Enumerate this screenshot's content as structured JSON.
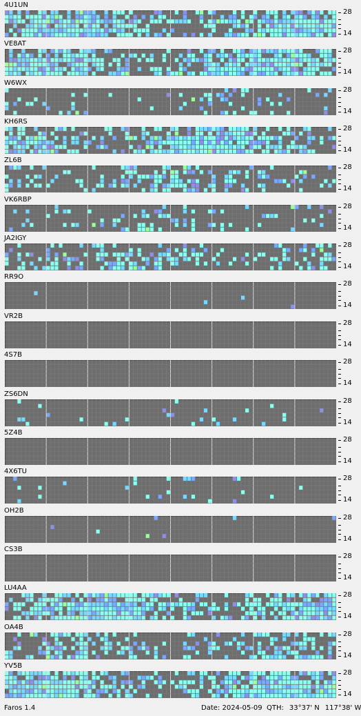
{
  "app": {
    "name": "Faros 1.4"
  },
  "status": {
    "date_label": "Date:",
    "date": "2024-05-09",
    "qth_label": "QTH:",
    "lat": "33°37' N",
    "lon": "117°38' W"
  },
  "axis": {
    "top_label": "28",
    "bottom_label": "14"
  },
  "colors": {
    "background": "#6e6e6e",
    "gridline": "#c8c8c8",
    "signal_strong": "#8cfff0",
    "signal_medium": "#78d8ff",
    "signal_weak": "#7aa8ff",
    "signal_faint": "#8f8fe8",
    "signal_green": "#9cff9c"
  },
  "beacons": [
    {
      "callsign": "4U1UN",
      "activity": "heavy"
    },
    {
      "callsign": "VE8AT",
      "activity": "heavy"
    },
    {
      "callsign": "W6WX",
      "activity": "light"
    },
    {
      "callsign": "KH6RS",
      "activity": "heavy"
    },
    {
      "callsign": "ZL6B",
      "activity": "medium"
    },
    {
      "callsign": "VK6RBP",
      "activity": "light"
    },
    {
      "callsign": "JA2IGY",
      "activity": "medium"
    },
    {
      "callsign": "RR9O",
      "activity": "trace"
    },
    {
      "callsign": "VR2B",
      "activity": "none"
    },
    {
      "callsign": "4S7B",
      "activity": "none"
    },
    {
      "callsign": "ZS6DN",
      "activity": "sparse"
    },
    {
      "callsign": "5Z4B",
      "activity": "none"
    },
    {
      "callsign": "4X6TU",
      "activity": "sparse"
    },
    {
      "callsign": "OH2B",
      "activity": "trace"
    },
    {
      "callsign": "CS3B",
      "activity": "none"
    },
    {
      "callsign": "LU4AA",
      "activity": "heavy"
    },
    {
      "callsign": "OA4B",
      "activity": "medium"
    },
    {
      "callsign": "YV5B",
      "activity": "heavy"
    }
  ]
}
